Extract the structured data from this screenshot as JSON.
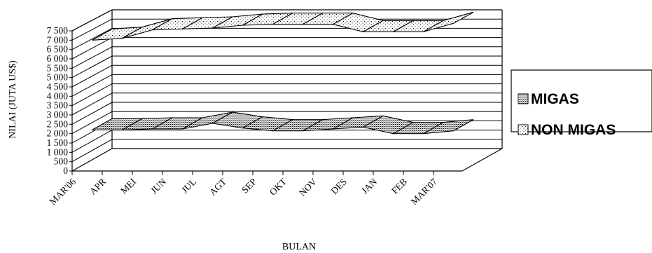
{
  "chart_data": {
    "type": "line",
    "style": "3d-ribbon",
    "title": "",
    "xlabel": "BULAN",
    "ylabel": "NILAI (JUTA US$)",
    "categories": [
      "MAR'06",
      "APR",
      "MEI",
      "JUN",
      "JUL",
      "AGT",
      "SEP",
      "OKT",
      "NOV",
      "DES",
      "JAN",
      "FEB",
      "MAR'07"
    ],
    "ylim": [
      0,
      7500
    ],
    "yticks": [
      "0",
      "500",
      "1 000",
      "1 500",
      "2 000",
      "2 500",
      "3 000",
      "3 500",
      "4 000",
      "4 500",
      "5 000",
      "5 500",
      "6 000",
      "6 500",
      "7 000",
      "7 500"
    ],
    "grid": true,
    "legend_position": "right",
    "series": [
      {
        "name": "MIGAS",
        "pattern": "dense-dots",
        "values": [
          1600,
          1600,
          1650,
          1650,
          1950,
          1700,
          1550,
          1550,
          1650,
          1750,
          1400,
          1400,
          1550
        ]
      },
      {
        "name": "NON MIGAS",
        "pattern": "light-dots",
        "values": [
          6400,
          6500,
          6950,
          7000,
          7050,
          7200,
          7250,
          7250,
          7250,
          6850,
          6850,
          6850,
          7300
        ]
      }
    ]
  }
}
